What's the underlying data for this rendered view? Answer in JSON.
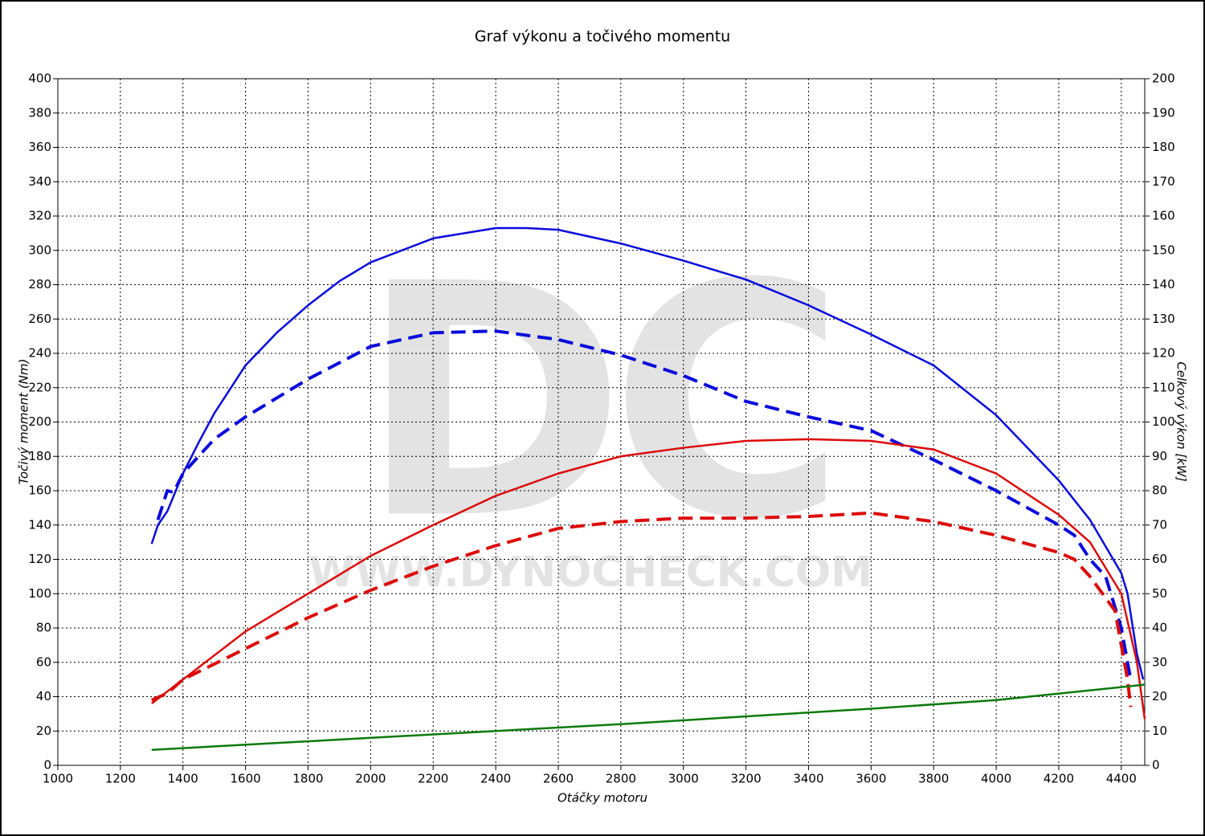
{
  "chart_data": {
    "type": "line",
    "title": "Graf výkonu a točivého momentu",
    "x_label": "Otáčky motoru",
    "y_label": "Točivý moment (Nm)",
    "y2_label": "Celkový výkon [kW]",
    "watermark_logo": "DC",
    "watermark_url": "WWW.DYNOCHECK.COM",
    "xlim": [
      1000,
      4475
    ],
    "xticks": [
      1000,
      1200,
      1400,
      1600,
      1800,
      2000,
      2200,
      2400,
      2600,
      2800,
      3000,
      3200,
      3400,
      3600,
      3800,
      4000,
      4200,
      4400
    ],
    "ylim": [
      0,
      400
    ],
    "yticks": [
      0,
      20,
      40,
      60,
      80,
      100,
      120,
      140,
      160,
      180,
      200,
      220,
      240,
      260,
      280,
      300,
      320,
      340,
      360,
      380,
      400
    ],
    "y2lim": [
      0,
      200
    ],
    "y2ticks": [
      0,
      10,
      20,
      30,
      40,
      50,
      60,
      70,
      80,
      90,
      100,
      110,
      120,
      130,
      140,
      150,
      160,
      170,
      180,
      190,
      200
    ],
    "grid": true,
    "series": [
      {
        "color": "#0a0adc",
        "dashed": false,
        "axis": "y",
        "x": [
          1300,
          1320,
          1350,
          1400,
          1450,
          1500,
          1600,
          1700,
          1800,
          1900,
          2000,
          2200,
          2400,
          2500,
          2600,
          2800,
          3000,
          3200,
          3400,
          3600,
          3800,
          4000,
          4200,
          4300,
          4400,
          4420,
          4450,
          4470
        ],
        "values": [
          129,
          140,
          148,
          170,
          188,
          205,
          233,
          252,
          268,
          282,
          293,
          307,
          313,
          313,
          312,
          304,
          294,
          283,
          268,
          251,
          233,
          204,
          166,
          143,
          112,
          100,
          65,
          50
        ]
      },
      {
        "color": "#0a0adc",
        "dashed": true,
        "axis": "y",
        "x": [
          1320,
          1350,
          1370,
          1400,
          1500,
          1600,
          1800,
          2000,
          2200,
          2400,
          2600,
          2800,
          3000,
          3200,
          3400,
          3600,
          3800,
          4000,
          4200,
          4250,
          4300,
          4350,
          4400,
          4430
        ],
        "values": [
          143,
          160,
          159,
          170,
          190,
          203,
          225,
          244,
          252,
          253,
          248,
          239,
          227,
          212,
          203,
          195,
          178,
          160,
          140,
          134,
          120,
          110,
          80,
          50
        ]
      },
      {
        "color": "#dc0a0a",
        "dashed": false,
        "axis": "y2",
        "x": [
          1300,
          1400,
          1600,
          1800,
          2000,
          2200,
          2400,
          2600,
          2800,
          3000,
          3200,
          3400,
          3600,
          3800,
          4000,
          4200,
          4300,
          4400,
          4450,
          4475
        ],
        "values": [
          18,
          25,
          39,
          50,
          61,
          70,
          78.5,
          85,
          90,
          92.5,
          94.5,
          95,
          94.5,
          92,
          85,
          73,
          65,
          50,
          30,
          13.5
        ]
      },
      {
        "color": "#dc0a0a",
        "dashed": true,
        "axis": "y2",
        "x": [
          1300,
          1350,
          1400,
          1600,
          1800,
          2000,
          2200,
          2400,
          2600,
          2800,
          3000,
          3200,
          3400,
          3600,
          3800,
          4000,
          4200,
          4250,
          4300,
          4380,
          4420,
          4430
        ],
        "values": [
          19,
          21,
          25,
          34,
          43,
          51,
          58,
          64,
          69,
          71,
          72,
          72,
          72.5,
          73.5,
          71,
          67,
          62,
          60,
          55,
          45,
          25,
          17
        ]
      },
      {
        "color": "#0a7a0a",
        "dashed": false,
        "axis": "y2",
        "x": [
          1300,
          2000,
          2800,
          3600,
          4000,
          4475
        ],
        "values": [
          4.5,
          8,
          12,
          16.5,
          19,
          23.5
        ]
      }
    ]
  }
}
